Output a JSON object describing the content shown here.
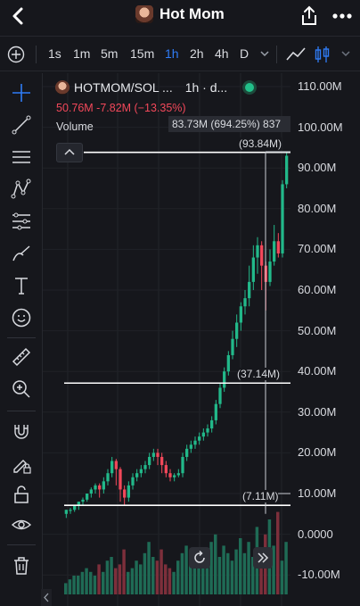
{
  "header": {
    "title": "Hot Mom",
    "icons": {
      "back": "chevron-left-icon",
      "share": "share-icon",
      "more": "more-dots-icon"
    }
  },
  "timeframes": {
    "items": [
      "1s",
      "1m",
      "5m",
      "15m",
      "1h",
      "2h",
      "4h",
      "D"
    ],
    "active": "1h"
  },
  "legend": {
    "symbol": "HOTMOM/SOL ...",
    "interval": "1h · d...",
    "ohlc": "50.76M  -7.82M (−13.35%)",
    "volume_label": "Volume"
  },
  "measure": {
    "tooltip": "83.73M (694.25%) 837",
    "top_label": "(93.84M)",
    "mid_label": "(37.14M)",
    "bottom_label": "(7.11M)"
  },
  "price_axis": [
    "110.00M",
    "100.00M",
    "90.00M",
    "80.00M",
    "70.00M",
    "60.00M",
    "50.00M",
    "40.00M",
    "30.00M",
    "20.00M",
    "10.00M",
    "0.0000",
    "-10.00M"
  ],
  "colors": {
    "up": "#22b98a",
    "down": "#f2485a",
    "accent": "#2f7cf6",
    "bg": "#16171c"
  },
  "chart_data": {
    "type": "candlestick",
    "ylim": [
      -10000000,
      110000000
    ],
    "candles": [
      [
        5,
        6,
        4,
        6
      ],
      [
        6,
        6,
        5,
        6.5
      ],
      [
        6,
        7,
        5.5,
        7
      ],
      [
        7,
        8,
        6,
        8
      ],
      [
        8,
        8.5,
        7,
        9
      ],
      [
        8.5,
        10,
        8,
        10
      ],
      [
        10,
        11,
        9,
        11.5
      ],
      [
        11,
        12,
        10,
        12.5
      ],
      [
        12,
        11,
        9,
        12.5
      ],
      [
        11,
        13,
        10,
        14
      ],
      [
        13,
        15,
        12,
        16
      ],
      [
        15,
        18,
        14,
        19
      ],
      [
        18,
        16,
        12,
        18.5
      ],
      [
        16,
        11,
        8,
        16.5
      ],
      [
        11,
        9,
        7,
        12
      ],
      [
        9,
        12,
        8,
        13
      ],
      [
        12,
        14,
        11,
        15
      ],
      [
        14,
        15,
        13,
        16
      ],
      [
        15,
        16,
        14,
        17
      ],
      [
        16,
        17,
        15,
        18
      ],
      [
        17,
        19,
        16,
        20
      ],
      [
        19,
        20,
        18,
        21
      ],
      [
        20,
        19,
        17,
        21
      ],
      [
        19,
        17,
        15,
        20
      ],
      [
        17,
        15,
        14,
        18
      ],
      [
        15,
        14,
        13,
        16
      ],
      [
        14,
        14.5,
        13,
        15
      ],
      [
        14.5,
        15,
        14,
        16
      ],
      [
        15,
        19,
        14,
        20
      ],
      [
        19,
        21,
        18,
        22
      ],
      [
        21,
        22,
        20,
        23
      ],
      [
        22,
        23,
        21,
        24
      ],
      [
        23,
        24,
        22,
        25
      ],
      [
        24,
        25,
        23,
        26
      ],
      [
        25,
        26,
        24,
        27
      ],
      [
        26,
        28,
        25,
        29
      ],
      [
        28,
        32,
        27,
        33
      ],
      [
        32,
        36,
        31,
        37
      ],
      [
        36,
        40,
        35,
        41
      ],
      [
        40,
        44,
        39,
        45
      ],
      [
        44,
        48,
        43,
        50
      ],
      [
        48,
        52,
        46,
        54
      ],
      [
        52,
        56,
        50,
        57
      ],
      [
        56,
        58,
        54,
        60
      ],
      [
        58,
        62,
        56,
        66
      ],
      [
        62,
        68,
        60,
        71
      ],
      [
        68,
        71,
        64,
        73
      ],
      [
        71,
        66,
        60,
        72
      ],
      [
        66,
        62,
        55,
        67
      ],
      [
        62,
        67,
        61,
        70
      ],
      [
        67,
        72,
        66,
        76
      ],
      [
        72,
        69,
        68,
        74
      ],
      [
        69,
        86,
        68,
        87
      ],
      [
        86,
        93,
        85,
        94
      ]
    ],
    "volume": [
      3,
      4,
      5,
      5,
      6,
      7,
      6,
      5,
      8,
      6,
      9,
      10,
      7,
      8,
      12,
      6,
      7,
      9,
      8,
      11,
      14,
      10,
      9,
      12,
      8,
      7,
      6,
      9,
      11,
      13,
      8,
      10,
      12,
      9,
      11,
      14,
      16,
      10,
      13,
      11,
      9,
      12,
      15,
      11,
      14,
      10,
      18,
      12,
      16,
      20,
      13,
      22,
      9,
      14
    ]
  }
}
